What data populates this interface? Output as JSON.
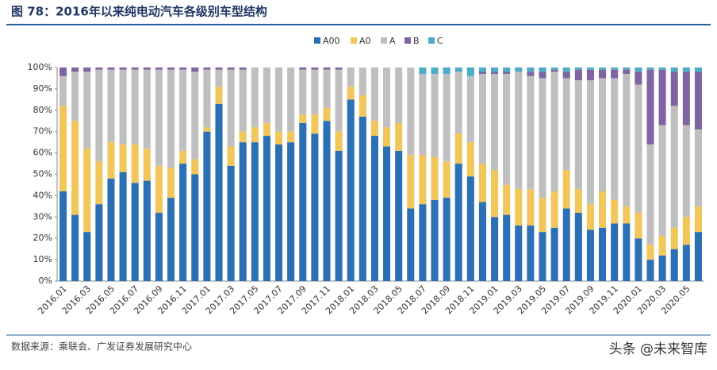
{
  "header": {
    "title": "图 78：2016年以来纯电动汽车各级别车型结构"
  },
  "chart_data": {
    "type": "stacked_bar",
    "categories": [
      "2016.01",
      null,
      "2016.03",
      null,
      "2016.05",
      null,
      "2016.07",
      null,
      "2016.09",
      null,
      "2016.11",
      null,
      "2017.01",
      null,
      "2017.03",
      null,
      "2017.05",
      null,
      "2017.07",
      null,
      "2017.09",
      null,
      "2017.11",
      null,
      "2018.01",
      null,
      "2018.03",
      null,
      "2018.05",
      null,
      "2018.07",
      null,
      "2018.09",
      null,
      "2018.11",
      null,
      "2019.01",
      null,
      "2019.03",
      null,
      "2019.05",
      null,
      "2019.07",
      null,
      "2019.09",
      null,
      "2019.11",
      null,
      "2020.01",
      null,
      "2020.03",
      null,
      "2020.05",
      null
    ],
    "series": [
      {
        "name": "A00",
        "color": "#2b70b5",
        "values": [
          42,
          31,
          23,
          36,
          48,
          51,
          46,
          47,
          32,
          39,
          55,
          50,
          70,
          83,
          54,
          65,
          65,
          68,
          64,
          65,
          74,
          69,
          75,
          61,
          85,
          77,
          68,
          63,
          61,
          34,
          36,
          38,
          39,
          55,
          49,
          37,
          30,
          31,
          26,
          26,
          23,
          25,
          34,
          32,
          24,
          25,
          27,
          27,
          20,
          10,
          12,
          15,
          17,
          23
        ]
      },
      {
        "name": "A0",
        "color": "#f1c65a",
        "values": [
          40,
          44,
          39,
          20,
          17,
          13,
          18,
          15,
          22,
          14,
          6,
          7,
          2,
          8,
          9,
          5,
          7,
          6,
          6,
          5,
          4,
          9,
          6,
          9,
          6,
          10,
          7,
          9,
          13,
          25,
          23,
          20,
          17,
          14,
          16,
          18,
          22,
          14,
          17,
          17,
          16,
          17,
          18,
          11,
          12,
          17,
          11,
          8,
          12,
          7,
          9,
          10,
          13,
          12
        ]
      },
      {
        "name": "A",
        "color": "#bfbfbf",
        "values": [
          14,
          23,
          36,
          43,
          34,
          35,
          35,
          37,
          45,
          46,
          38,
          41,
          27,
          8,
          36,
          29,
          28,
          26,
          30,
          30,
          21,
          21,
          18,
          29,
          9,
          13,
          25,
          28,
          26,
          41,
          38,
          39,
          41,
          29,
          31,
          42,
          45,
          52,
          55,
          53,
          56,
          56,
          43,
          51,
          58,
          53,
          57,
          62,
          60,
          47,
          52,
          57,
          43,
          36
        ]
      },
      {
        "name": "B",
        "color": "#8064a2",
        "values": [
          4,
          2,
          2,
          1,
          1,
          1,
          1,
          1,
          1,
          1,
          1,
          2,
          1,
          1,
          1,
          1,
          0,
          0,
          0,
          0,
          1,
          1,
          1,
          1,
          0,
          0,
          0,
          0,
          0,
          0,
          0,
          0,
          0,
          0,
          0,
          1,
          1,
          1,
          0,
          2,
          3,
          1,
          3,
          5,
          5,
          4,
          4,
          2,
          6,
          35,
          26,
          16,
          25,
          27
        ]
      },
      {
        "name": "C",
        "color": "#4bacc6",
        "values": [
          0,
          0,
          0,
          0,
          0,
          0,
          0,
          0,
          0,
          0,
          0,
          0,
          0,
          0,
          0,
          0,
          0,
          0,
          0,
          0,
          0,
          0,
          0,
          0,
          0,
          0,
          0,
          0,
          0,
          0,
          3,
          3,
          3,
          2,
          4,
          2,
          2,
          2,
          2,
          2,
          2,
          1,
          2,
          1,
          1,
          1,
          1,
          1,
          2,
          1,
          1,
          2,
          2,
          2
        ]
      }
    ],
    "ylim": [
      0,
      100
    ],
    "yticks": [
      {
        "value": 0,
        "label": "0%"
      },
      {
        "value": 10,
        "label": "10%"
      },
      {
        "value": 20,
        "label": "20%"
      },
      {
        "value": 30,
        "label": "30%"
      },
      {
        "value": 40,
        "label": "40%"
      },
      {
        "value": 50,
        "label": "50%"
      },
      {
        "value": 60,
        "label": "60%"
      },
      {
        "value": 70,
        "label": "70%"
      },
      {
        "value": 80,
        "label": "80%"
      },
      {
        "value": 90,
        "label": "90%"
      },
      {
        "value": 100,
        "label": "100%"
      }
    ]
  },
  "footer": {
    "source": "数据来源：乘联会、广发证券发展研究中心",
    "watermark": "头条 @未来智库"
  }
}
